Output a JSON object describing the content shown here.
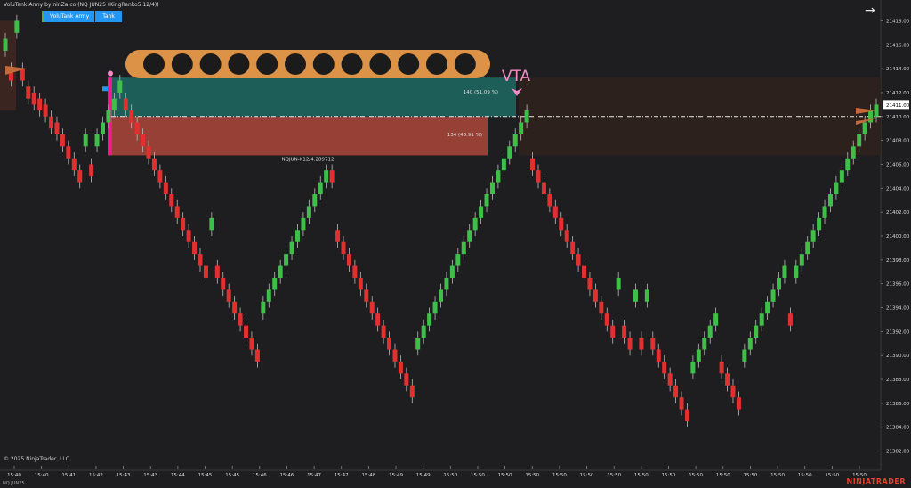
{
  "header": {
    "title": "VoluTank Army by ninZa.co (NQ JUN25 (KingRenko5 12/4))",
    "tabs": [
      "VoluTank Army",
      "Tank"
    ]
  },
  "footer": {
    "copyright": "© 2025 NinjaTrader, LLC",
    "instrument": "NQ JUN25",
    "brand": "NINJATRADER"
  },
  "labels": {
    "vta": "VTA",
    "buy_volume": "140 (51.09 %)",
    "sell_volume": "134 (48.91 %)",
    "zone_id": "NQJUN-K12/4.289712"
  },
  "colors": {
    "background": "#1e1e20",
    "up_candle": "#3fbf4a",
    "down_candle": "#e23030",
    "buy_zone": "#1e5e58",
    "sell_zone": "#974035",
    "tank_body": "#dc9348",
    "vta_marker": "#f08bc6"
  },
  "chart_data": {
    "type": "candlestick",
    "ylim": [
      21381,
      21419
    ],
    "yticks": [
      21382,
      21384,
      21386,
      21388,
      21390,
      21392,
      21394,
      21396,
      21398,
      21400,
      21402,
      21404,
      21406,
      21408,
      21410,
      21412,
      21414,
      21416,
      21418
    ],
    "current_price": "21411.00",
    "zone": {
      "top": 21413.25,
      "mid": 21410.0,
      "bottom": 21406.75
    },
    "xticks": [
      "15:40",
      "15:40",
      "15:41",
      "15:42",
      "15:43",
      "15:43",
      "15:44",
      "15:45",
      "15:45",
      "15:46",
      "15:46",
      "15:47",
      "15:47",
      "15:48",
      "15:49",
      "15:49",
      "15:50",
      "15:50",
      "15:50",
      "15:50",
      "15:50",
      "15:50",
      "15:50",
      "15:50",
      "15:50",
      "15:50",
      "15:50",
      "15:50",
      "15:50",
      "15:50",
      "15:50",
      "15:50"
    ],
    "closes": [
      21416.5,
      21413.0,
      21418.0,
      21413.0,
      21411.5,
      21411.0,
      21410.5,
      21410.0,
      21409.0,
      21408.5,
      21407.5,
      21406.5,
      21405.5,
      21404.5,
      21408.5,
      21405.0,
      21408.5,
      21409.5,
      21410.5,
      21411.5,
      21413.0,
      21410.5,
      21409.5,
      21408.5,
      21407.5,
      21406.5,
      21405.5,
      21404.5,
      21403.5,
      21402.5,
      21401.5,
      21400.5,
      21399.5,
      21398.5,
      21397.5,
      21396.5,
      21401.5,
      21396.5,
      21395.5,
      21394.5,
      21393.5,
      21392.5,
      21391.5,
      21390.5,
      21389.5,
      21394.5,
      21395.5,
      21396.5,
      21397.5,
      21398.5,
      21399.5,
      21400.5,
      21401.5,
      21402.5,
      21403.5,
      21404.5,
      21405.5,
      21404.5,
      21399.5,
      21398.5,
      21397.5,
      21396.5,
      21395.5,
      21394.5,
      21393.5,
      21392.5,
      21391.5,
      21390.5,
      21389.5,
      21388.5,
      21387.5,
      21386.5,
      21391.5,
      21392.5,
      21393.5,
      21394.5,
      21395.5,
      21396.5,
      21397.5,
      21398.5,
      21399.5,
      21400.5,
      21401.5,
      21402.5,
      21403.5,
      21404.5,
      21405.5,
      21406.5,
      21407.5,
      21408.5,
      21409.5,
      21410.5,
      21405.5,
      21404.5,
      21403.5,
      21402.5,
      21401.5,
      21400.5,
      21399.5,
      21398.5,
      21397.5,
      21396.5,
      21395.5,
      21394.5,
      21393.5,
      21392.5,
      21391.5,
      21396.5,
      21391.5,
      21390.5,
      21395.5,
      21390.5,
      21395.5,
      21390.5,
      21389.5,
      21388.5,
      21387.5,
      21386.5,
      21385.5,
      21384.5,
      21389.5,
      21390.5,
      21391.5,
      21392.5,
      21393.5,
      21388.5,
      21387.5,
      21386.5,
      21385.5,
      21390.5,
      21391.5,
      21392.5,
      21393.5,
      21394.5,
      21395.5,
      21396.5,
      21397.5,
      21392.5,
      21397.5,
      21398.5,
      21399.5,
      21400.5,
      21401.5,
      21402.5,
      21403.5,
      21404.5,
      21405.5,
      21406.5,
      21407.5,
      21408.5,
      21409.5,
      21410.5,
      21411.0
    ]
  }
}
